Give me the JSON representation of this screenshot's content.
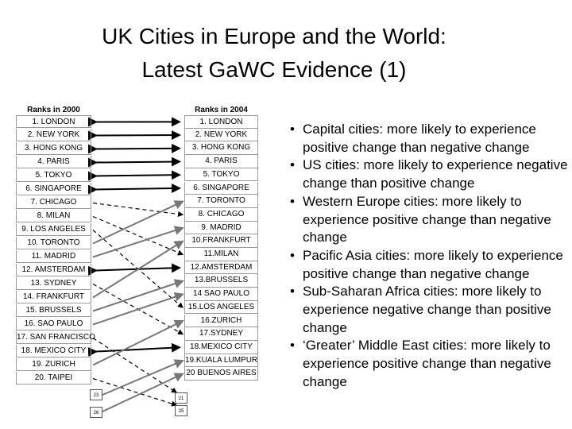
{
  "header": {
    "title_line1": "UK Cities in Europe and the World:",
    "title_line2": "Latest GaWC Evidence (1)"
  },
  "table": {
    "left_header": "Ranks in 2000",
    "right_header": "Ranks in 2004",
    "ranks_2000": [
      "1. LONDON",
      "2. NEW YORK",
      "3. HONG KONG",
      "4. PARIS",
      "5. TOKYO",
      "6. SINGAPORE",
      "7. CHICAGO",
      "8. MILAN",
      "9. LOS ANGELES",
      "10. TORONTO",
      "11. MADRID",
      "12. AMSTERDAM",
      "13. SYDNEY",
      "14. FRANKFURT",
      "15. BRUSSELS",
      "16. SAO PAULO",
      "17. SAN FRANCISCO",
      "18. MEXICO CITY",
      "19. ZURICH",
      "20. TAIPEI"
    ],
    "ranks_2004": [
      "1. LONDON",
      "2. NEW YORK",
      "3. HONG KONG",
      "4. PARIS",
      "5. TOKYO",
      "6. SINGAPORE",
      "7. TORONTO",
      "8. CHICAGO",
      "9. MADRID",
      "10.FRANKFURT",
      "11.MILAN",
      "12.AMSTERDAM",
      "13.BRUSSELS",
      "14 SAO PAULO",
      "15.LOS ANGELES",
      "16.ZURICH",
      "17.SYDNEY",
      "18.MEXICO CITY",
      "19.KUALA LUMPUR",
      "20 BUENOS AIRES"
    ],
    "left_boxes": [
      "23",
      "26"
    ],
    "right_boxes": [
      "21",
      "25"
    ]
  },
  "bullets": [
    "Capital cities: more likely to experience positive change than negative change",
    "US cities: more likely to experience negative change than positive change",
    "Western Europe cities: more likely to experience positive change than negative change",
    "Pacific Asia cities: more likely to experience positive change than negative change",
    "Sub-Saharan Africa cities: more likely to experience negative change than positive change",
    "‘Greater’ Middle East cities: more likely to experience positive change than negative change"
  ]
}
